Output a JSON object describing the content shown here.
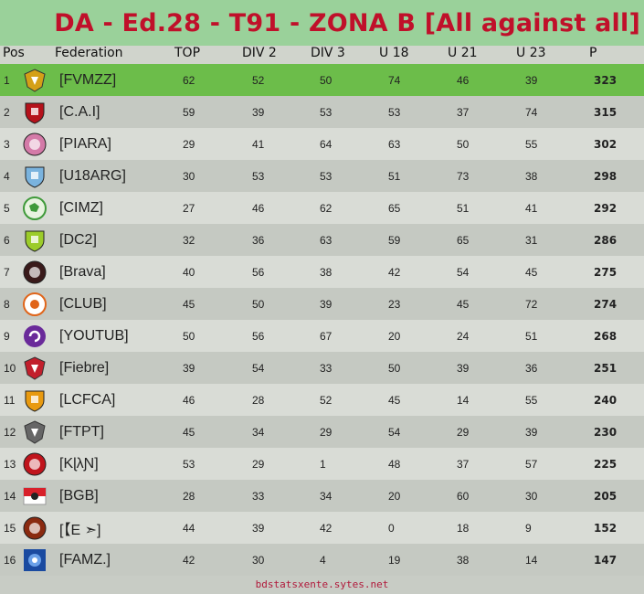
{
  "title": "DA - Ed.28 - T91 - ZONA B  [All against all]",
  "columns": {
    "pos": "Pos",
    "federation": "Federation",
    "top": "TOP",
    "div2": "DIV 2",
    "div3": "DIV 3",
    "u18": "U 18",
    "u21": "U 21",
    "u23": "U 23",
    "p": "P"
  },
  "rows": [
    {
      "pos": "1",
      "federation": "[FVMZZ]",
      "top": "62",
      "div2": "52",
      "div3": "50",
      "u18": "74",
      "u21": "46",
      "u23": "39",
      "p": "323",
      "logo": "crest-icon",
      "color": "#d4a017"
    },
    {
      "pos": "2",
      "federation": "[C.A.I]",
      "top": "59",
      "div2": "39",
      "div3": "53",
      "u18": "53",
      "u21": "37",
      "u23": "74",
      "p": "315",
      "logo": "shield-icon",
      "color": "#b5121b"
    },
    {
      "pos": "3",
      "federation": "[PIARA]",
      "top": "29",
      "div2": "41",
      "div3": "64",
      "u18": "63",
      "u21": "50",
      "u23": "55",
      "p": "302",
      "logo": "badge-icon",
      "color": "#d47aa8"
    },
    {
      "pos": "4",
      "federation": "[U18ARG]",
      "top": "30",
      "div2": "53",
      "div3": "53",
      "u18": "51",
      "u21": "73",
      "u23": "38",
      "p": "298",
      "logo": "shield-icon",
      "color": "#7ab3de"
    },
    {
      "pos": "5",
      "federation": "[CIMZ]",
      "top": "27",
      "div2": "46",
      "div3": "62",
      "u18": "65",
      "u21": "51",
      "u23": "41",
      "p": "292",
      "logo": "globe-icon",
      "color": "#3f9a3a"
    },
    {
      "pos": "6",
      "federation": "[DC2]",
      "top": "32",
      "div2": "36",
      "div3": "63",
      "u18": "59",
      "u21": "65",
      "u23": "31",
      "p": "286",
      "logo": "shield-icon",
      "color": "#9ccc2a"
    },
    {
      "pos": "7",
      "federation": "[Brava]",
      "top": "40",
      "div2": "56",
      "div3": "38",
      "u18": "42",
      "u21": "54",
      "u23": "45",
      "p": "275",
      "logo": "badge-icon",
      "color": "#3a1a1a"
    },
    {
      "pos": "8",
      "federation": "[CLUB]",
      "top": "45",
      "div2": "50",
      "div3": "39",
      "u18": "23",
      "u21": "45",
      "u23": "72",
      "p": "274",
      "logo": "ball-icon",
      "color": "#e0651a"
    },
    {
      "pos": "9",
      "federation": "[YOUTUB]",
      "top": "50",
      "div2": "56",
      "div3": "67",
      "u18": "20",
      "u21": "24",
      "u23": "51",
      "p": "268",
      "logo": "swirl-icon",
      "color": "#6a2a9a"
    },
    {
      "pos": "10",
      "federation": "[Fiebre]",
      "top": "39",
      "div2": "54",
      "div3": "33",
      "u18": "50",
      "u21": "39",
      "u23": "36",
      "p": "251",
      "logo": "crest-icon",
      "color": "#c21f2c"
    },
    {
      "pos": "11",
      "federation": "[LCFCA]",
      "top": "46",
      "div2": "28",
      "div3": "52",
      "u18": "45",
      "u21": "14",
      "u23": "55",
      "p": "240",
      "logo": "shield-icon",
      "color": "#e89a10"
    },
    {
      "pos": "12",
      "federation": "[FTPT]",
      "top": "45",
      "div2": "34",
      "div3": "29",
      "u18": "54",
      "u21": "29",
      "u23": "39",
      "p": "230",
      "logo": "crest-icon",
      "color": "#666666"
    },
    {
      "pos": "13",
      "federation": "[KɭλƝ]",
      "top": "53",
      "div2": "29",
      "div3": "1",
      "u18": "48",
      "u21": "37",
      "u23": "57",
      "p": "225",
      "logo": "badge-icon",
      "color": "#c0141c"
    },
    {
      "pos": "14",
      "federation": "[BGB]",
      "top": "28",
      "div2": "33",
      "div3": "34",
      "u18": "20",
      "u21": "60",
      "u23": "30",
      "p": "205",
      "logo": "flag-icon",
      "color": "#d8202a"
    },
    {
      "pos": "15",
      "federation": "[【E ➣]",
      "top": "44",
      "div2": "39",
      "div3": "42",
      "u18": "0",
      "u21": "18",
      "u23": "9",
      "p": "152",
      "logo": "badge-icon",
      "color": "#8a2a10"
    },
    {
      "pos": "16",
      "federation": "[FAMZ.]",
      "top": "42",
      "div2": "30",
      "div3": "4",
      "u18": "19",
      "u21": "38",
      "u23": "14",
      "p": "147",
      "logo": "square-icon",
      "color": "#1a4aa0"
    }
  ],
  "footer": "bdstatsxente.sytes.net"
}
